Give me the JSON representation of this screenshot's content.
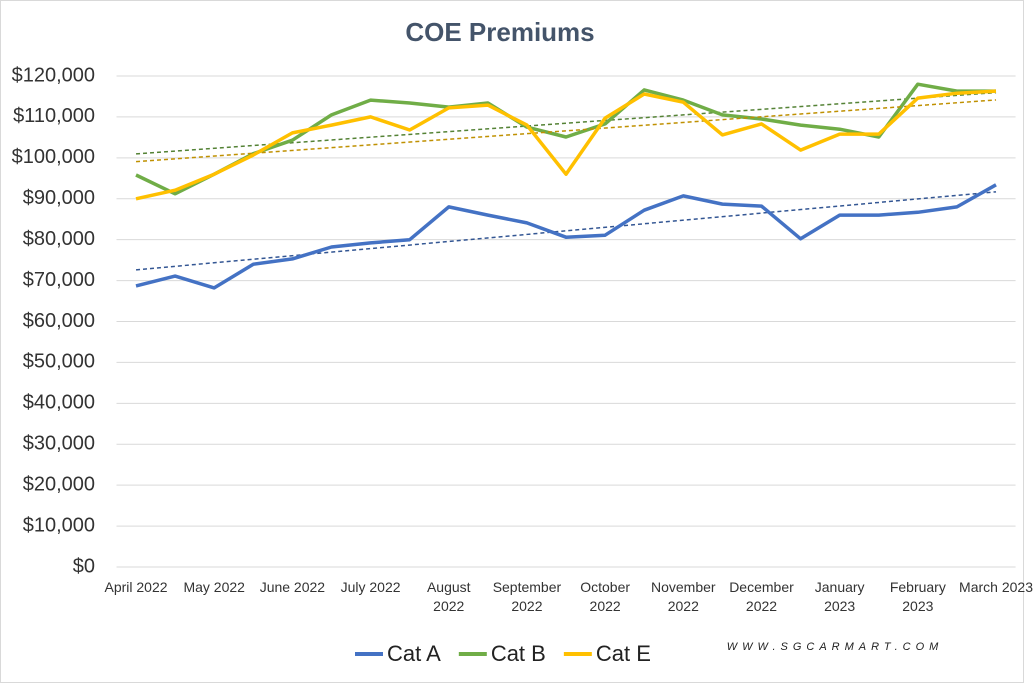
{
  "chart_data": {
    "type": "line",
    "title": "COE Premiums",
    "categories": [
      "April 2022",
      null,
      "May 2022",
      null,
      "June 2022",
      null,
      "July 2022",
      null,
      "August 2022",
      null,
      "September 2022",
      null,
      "October 2022",
      null,
      "November 2022",
      null,
      "December 2022",
      null,
      "January 2023",
      null,
      "February 2023",
      null,
      "March 2023"
    ],
    "series": [
      {
        "name": "Cat A",
        "color": "#4472c4",
        "values": [
          68700,
          71100,
          68200,
          74000,
          75300,
          78200,
          79200,
          80000,
          88000,
          86000,
          84100,
          80600,
          81100,
          87200,
          90700,
          88700,
          88200,
          80200,
          86000,
          86000,
          86700,
          88000,
          93400
        ]
      },
      {
        "name": "Cat B",
        "color": "#70ad47",
        "values": [
          95800,
          91200,
          96000,
          101000,
          104300,
          110500,
          114100,
          113400,
          112400,
          113400,
          107500,
          105100,
          108300,
          116600,
          114100,
          110500,
          109500,
          108000,
          107000,
          105100,
          118000,
          116300,
          116300
        ]
      },
      {
        "name": "Cat E",
        "color": "#ffc000",
        "values": [
          90000,
          92100,
          96000,
          100700,
          106100,
          108000,
          110000,
          106800,
          112200,
          112900,
          108000,
          96000,
          109700,
          115600,
          113600,
          105600,
          108300,
          101900,
          105800,
          105800,
          114600,
          115800,
          116300
        ]
      }
    ],
    "trendline": true,
    "ylim": [
      0,
      120000
    ],
    "yticks": [
      {
        "value": 0,
        "label": "$0"
      },
      {
        "value": 10000,
        "label": "$10,000"
      },
      {
        "value": 20000,
        "label": "$20,000"
      },
      {
        "value": 30000,
        "label": "$30,000"
      },
      {
        "value": 40000,
        "label": "$40,000"
      },
      {
        "value": 50000,
        "label": "$50,000"
      },
      {
        "value": 60000,
        "label": "$60,000"
      },
      {
        "value": 70000,
        "label": "$70,000"
      },
      {
        "value": 80000,
        "label": "$80,000"
      },
      {
        "value": 90000,
        "label": "$90,000"
      },
      {
        "value": 100000,
        "label": "$100,000"
      },
      {
        "value": 110000,
        "label": "$110,000"
      },
      {
        "value": 120000,
        "label": "$120,000"
      }
    ],
    "grid": true,
    "legend": "bottom",
    "watermark": "WWW.SGCARMART.COM"
  }
}
